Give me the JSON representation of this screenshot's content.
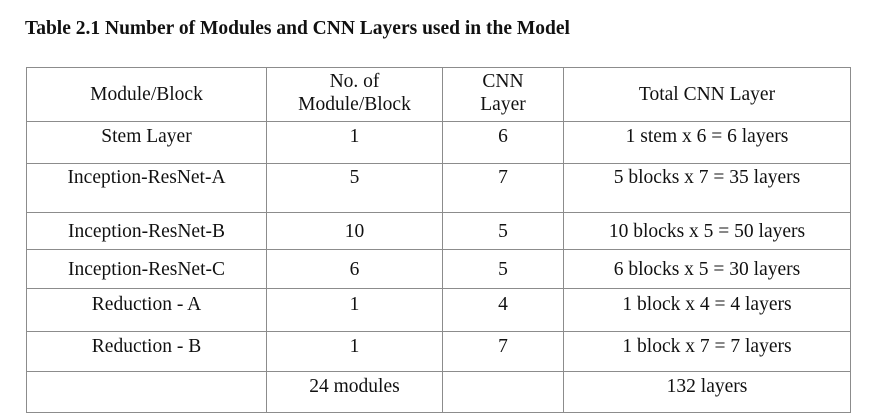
{
  "caption": "Table 2.1 Number of Modules and CNN Layers used in the Model",
  "headers": {
    "module": "Module/Block",
    "count_line1": "No. of",
    "count_line2": "Module/Block",
    "cnn_line1": "CNN",
    "cnn_line2": "Layer",
    "total": "Total CNN Layer"
  },
  "rows": [
    {
      "module": "Stem Layer",
      "count": "1",
      "cnn": "6",
      "total": "1 stem x 6 = 6 layers"
    },
    {
      "module": "Inception-ResNet-A",
      "count": "5",
      "cnn": "7",
      "total": "5 blocks x 7 = 35 layers"
    },
    {
      "module": "Inception-ResNet-B",
      "count": "10",
      "cnn": "5",
      "total": "10 blocks x 5 = 50 layers"
    },
    {
      "module": "Inception-ResNet-C",
      "count": "6",
      "cnn": "5",
      "total": "6 blocks x 5 = 30 layers"
    },
    {
      "module": "Reduction - A",
      "count": "1",
      "cnn": "4",
      "total": "1 block x 4 = 4 layers"
    },
    {
      "module": "Reduction - B",
      "count": "1",
      "cnn": "7",
      "total": "1 block x 7 = 7 layers"
    }
  ],
  "totals": {
    "module": "",
    "count": "24 modules",
    "cnn": "",
    "total": "132 layers"
  }
}
